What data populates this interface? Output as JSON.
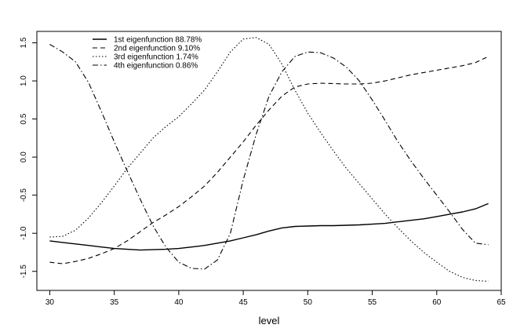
{
  "chart_data": {
    "type": "line",
    "xlabel": "level",
    "ylabel": "",
    "xlim": [
      29,
      65
    ],
    "ylim": [
      -1.75,
      1.65
    ],
    "xticks": [
      30,
      35,
      40,
      45,
      50,
      55,
      60,
      65
    ],
    "yticks": [
      -1.5,
      -1.0,
      -0.5,
      0.0,
      0.5,
      1.0,
      1.5
    ],
    "ytick_labels": [
      "-1.5",
      "-1.0",
      "-0.5",
      "0.0",
      "0.5",
      "1.0",
      "1.5"
    ],
    "legend_position": "top-left",
    "grid": false,
    "series": [
      {
        "name": "1st eigenfunction 88.78%",
        "style": "solid",
        "x": [
          30,
          31,
          32,
          33,
          34,
          35,
          36,
          37,
          38,
          39,
          40,
          41,
          42,
          43,
          44,
          45,
          46,
          47,
          48,
          49,
          50,
          51,
          52,
          53,
          54,
          55,
          56,
          57,
          58,
          59,
          60,
          61,
          62,
          63,
          64
        ],
        "y": [
          -1.1,
          -1.12,
          -1.14,
          -1.16,
          -1.18,
          -1.2,
          -1.21,
          -1.22,
          -1.215,
          -1.21,
          -1.2,
          -1.18,
          -1.16,
          -1.13,
          -1.1,
          -1.06,
          -1.02,
          -0.97,
          -0.93,
          -0.91,
          -0.905,
          -0.9,
          -0.9,
          -0.895,
          -0.89,
          -0.88,
          -0.87,
          -0.85,
          -0.83,
          -0.81,
          -0.78,
          -0.75,
          -0.72,
          -0.68,
          -0.61
        ]
      },
      {
        "name": "2nd eigenfunction 9.10%",
        "style": "dashed",
        "x": [
          30,
          31,
          32,
          33,
          34,
          35,
          36,
          37,
          38,
          39,
          40,
          41,
          42,
          43,
          44,
          45,
          46,
          47,
          48,
          49,
          50,
          51,
          52,
          53,
          54,
          55,
          56,
          57,
          58,
          59,
          60,
          61,
          62,
          63,
          64
        ],
        "y": [
          -1.38,
          -1.4,
          -1.37,
          -1.33,
          -1.27,
          -1.2,
          -1.1,
          -0.98,
          -0.86,
          -0.76,
          -0.65,
          -0.52,
          -0.38,
          -0.2,
          0.0,
          0.2,
          0.42,
          0.62,
          0.8,
          0.92,
          0.96,
          0.97,
          0.965,
          0.96,
          0.96,
          0.97,
          1.0,
          1.04,
          1.08,
          1.11,
          1.14,
          1.17,
          1.2,
          1.24,
          1.32
        ]
      },
      {
        "name": "3rd eigenfunction 1.74%",
        "style": "dotted",
        "x": [
          30,
          31,
          32,
          33,
          34,
          35,
          36,
          37,
          38,
          39,
          40,
          41,
          42,
          43,
          44,
          45,
          46,
          47,
          48,
          49,
          50,
          51,
          52,
          53,
          54,
          55,
          56,
          57,
          58,
          59,
          60,
          61,
          62,
          63,
          64
        ],
        "y": [
          -1.05,
          -1.04,
          -0.96,
          -0.8,
          -0.6,
          -0.38,
          -0.15,
          0.05,
          0.25,
          0.4,
          0.53,
          0.7,
          0.88,
          1.12,
          1.38,
          1.55,
          1.57,
          1.48,
          1.22,
          0.88,
          0.58,
          0.32,
          0.08,
          -0.15,
          -0.35,
          -0.55,
          -0.75,
          -0.93,
          -1.1,
          -1.25,
          -1.38,
          -1.5,
          -1.58,
          -1.62,
          -1.63
        ]
      },
      {
        "name": "4th eigenfunction 0.86%",
        "style": "dashdot",
        "x": [
          30,
          31,
          32,
          33,
          34,
          35,
          36,
          37,
          38,
          39,
          40,
          41,
          42,
          43,
          44,
          45,
          46,
          47,
          48,
          49,
          50,
          51,
          52,
          53,
          54,
          55,
          56,
          57,
          58,
          59,
          60,
          61,
          62,
          63,
          64
        ],
        "y": [
          1.48,
          1.38,
          1.25,
          0.98,
          0.6,
          0.2,
          -0.18,
          -0.55,
          -0.9,
          -1.18,
          -1.38,
          -1.46,
          -1.47,
          -1.35,
          -1.0,
          -0.3,
          0.3,
          0.8,
          1.12,
          1.32,
          1.38,
          1.37,
          1.3,
          1.18,
          1.0,
          0.75,
          0.48,
          0.2,
          -0.05,
          -0.28,
          -0.5,
          -0.72,
          -0.95,
          -1.13,
          -1.15
        ]
      }
    ]
  }
}
